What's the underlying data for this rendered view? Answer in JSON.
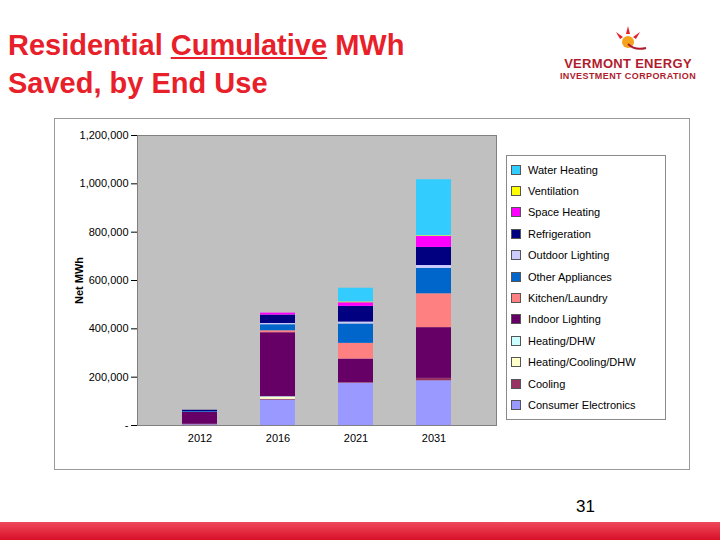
{
  "chart_data": {
    "type": "bar",
    "title": "Residential Cumulative MWh Saved, by End Use",
    "ylabel": "Net MWh",
    "categories": [
      "2012",
      "2016",
      "2021",
      "2031"
    ],
    "stacked": true,
    "legend": "right",
    "grid": false,
    "ylim": [
      0,
      1200000
    ],
    "yticks": [
      {
        "value": 0,
        "label": "-"
      },
      {
        "value": 200000,
        "label": "200,000"
      },
      {
        "value": 400000,
        "label": "400,000"
      },
      {
        "value": 600000,
        "label": "600,000"
      },
      {
        "value": 800000,
        "label": "800,000"
      },
      {
        "value": 1000000,
        "label": "1,000,000"
      },
      {
        "value": 1200000,
        "label": "1,200,000"
      }
    ],
    "series": [
      {
        "name": "Consumer Electronics",
        "color": "#9999ff",
        "values": [
          3000,
          105000,
          175000,
          185000
        ]
      },
      {
        "name": "Cooling",
        "color": "#993366",
        "values": [
          2000,
          3000,
          3000,
          10000
        ]
      },
      {
        "name": "Heating/Cooling/DHW",
        "color": "#ffffcc",
        "values": [
          0,
          8000,
          0,
          0
        ]
      },
      {
        "name": "Heating/DHW",
        "color": "#ccffff",
        "values": [
          0,
          3000,
          0,
          0
        ]
      },
      {
        "name": "Indoor Lighting",
        "color": "#660066",
        "values": [
          50000,
          265000,
          97000,
          210000
        ]
      },
      {
        "name": "Kitchen/Laundry",
        "color": "#ff8080",
        "values": [
          0,
          8000,
          65000,
          140000
        ]
      },
      {
        "name": "Other Appliances",
        "color": "#0066cc",
        "values": [
          3000,
          25000,
          80000,
          105000
        ]
      },
      {
        "name": "Outdoor Lighting",
        "color": "#ccccff",
        "values": [
          0,
          5000,
          8000,
          12000
        ]
      },
      {
        "name": "Refrigeration",
        "color": "#000080",
        "values": [
          5000,
          35000,
          65000,
          75000
        ]
      },
      {
        "name": "Space Heating",
        "color": "#ff00ff",
        "values": [
          0,
          8000,
          15000,
          45000
        ]
      },
      {
        "name": "Ventilation",
        "color": "#ffff00",
        "values": [
          0,
          0,
          3000,
          3000
        ]
      },
      {
        "name": "Water Heating",
        "color": "#33ccff",
        "values": [
          0,
          0,
          57000,
          232000
        ]
      }
    ]
  },
  "slide": {
    "logo": [
      "VERMONT ENERGY",
      "INVESTMENT CORPORATION"
    ],
    "page_number": "31"
  }
}
